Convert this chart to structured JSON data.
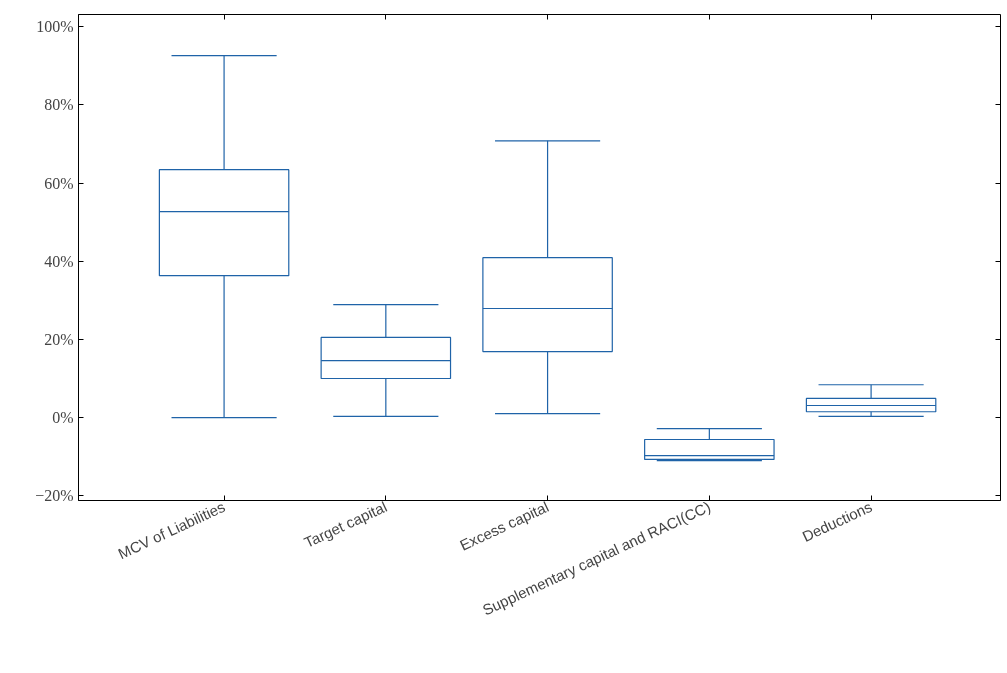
{
  "chart_data": {
    "type": "box",
    "color": "#1f63a8",
    "categories": [
      "MCV of Liabilities",
      "Target capital",
      "Excess capital",
      "Supplementary capital and RACI(CC)",
      "Deductions"
    ],
    "boxes": [
      {
        "low": 0,
        "q1": 36.3,
        "median": 52.7,
        "q3": 63.4,
        "high": 92.6
      },
      {
        "low": 0.3,
        "q1": 10.0,
        "median": 14.6,
        "q3": 20.5,
        "high": 28.9
      },
      {
        "low": 1.0,
        "q1": 16.9,
        "median": 27.9,
        "q3": 40.9,
        "high": 70.8
      },
      {
        "low": -11.0,
        "q1": -10.7,
        "median": -9.7,
        "q3": -5.6,
        "high": -2.8
      },
      {
        "low": 0.3,
        "q1": 1.5,
        "median": 3.1,
        "q3": 4.9,
        "high": 8.4
      }
    ],
    "ylim": [
      -21.2,
      103.1
    ],
    "yticks": [
      {
        "value": -20,
        "label": "−20%"
      },
      {
        "value": 0,
        "label": "0%"
      },
      {
        "value": 20,
        "label": "20%"
      },
      {
        "value": 40,
        "label": "40%"
      },
      {
        "value": 60,
        "label": "60%"
      },
      {
        "value": 80,
        "label": "80%"
      },
      {
        "value": 100,
        "label": "100%"
      }
    ],
    "grid": false
  }
}
